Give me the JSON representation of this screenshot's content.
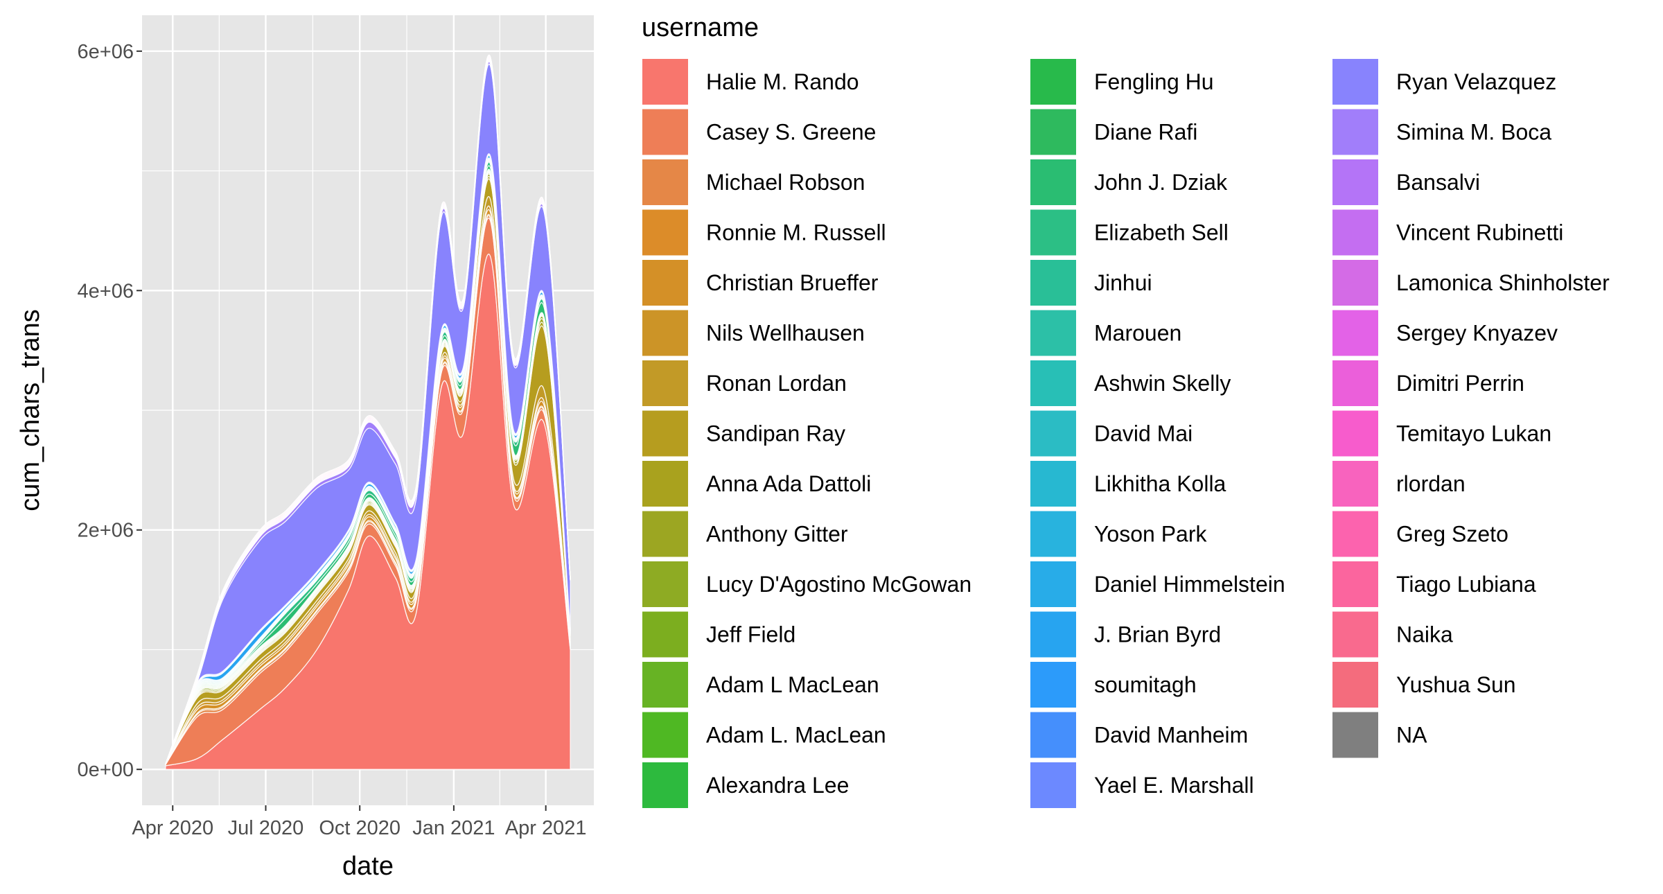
{
  "chart_data": {
    "type": "area",
    "stacked": true,
    "smoothed": true,
    "xlabel": "date",
    "ylabel": "cum_chars_trans",
    "legend_title": "username",
    "legend_position": "right",
    "grid": true,
    "background": "#E6E6E6",
    "xlim": [
      "2020-03-02",
      "2021-05-18"
    ],
    "ylim": [
      -300000,
      6300000
    ],
    "x_ticks": [
      {
        "date": "2020-04-01",
        "label": "Apr 2020"
      },
      {
        "date": "2020-07-01",
        "label": "Jul 2020"
      },
      {
        "date": "2020-10-01",
        "label": "Oct 2020"
      },
      {
        "date": "2021-01-01",
        "label": "Jan 2021"
      },
      {
        "date": "2021-04-01",
        "label": "Apr 2021"
      }
    ],
    "y_ticks": [
      {
        "value": 0,
        "label": "0e+00"
      },
      {
        "value": 2000000,
        "label": "2e+06"
      },
      {
        "value": 4000000,
        "label": "4e+06"
      },
      {
        "value": 6000000,
        "label": "6e+06"
      }
    ],
    "x": [
      "2020-03-25",
      "2020-04-25",
      "2020-05-20",
      "2020-06-25",
      "2020-07-20",
      "2020-08-20",
      "2020-09-20",
      "2020-10-10",
      "2020-11-05",
      "2020-11-25",
      "2020-12-20",
      "2021-01-10",
      "2021-02-05",
      "2021-03-01",
      "2021-03-30",
      "2021-04-25"
    ],
    "series": [
      {
        "name": "Halie M. Rando",
        "color": "#F8766D",
        "values": [
          30000,
          90000,
          250000,
          500000,
          680000,
          1000000,
          1500000,
          1950000,
          1600000,
          1300000,
          3200000,
          2800000,
          4300000,
          2200000,
          2900000,
          1000000
        ]
      },
      {
        "name": "Casey S. Greene",
        "color": "#EE7E57",
        "values": [
          10000,
          350000,
          250000,
          300000,
          300000,
          300000,
          150000,
          100000,
          100000,
          100000,
          120000,
          200000,
          300000,
          80000,
          80000,
          30000
        ]
      },
      {
        "name": "Michael Robson",
        "color": "#E58747",
        "values": [
          0,
          20000,
          20000,
          20000,
          20000,
          20000,
          20000,
          20000,
          20000,
          20000,
          20000,
          20000,
          20000,
          20000,
          20000,
          10000
        ]
      },
      {
        "name": "Ronnie M. Russell",
        "color": "#DC8C29",
        "values": [
          0,
          10000,
          10000,
          10000,
          10000,
          10000,
          10000,
          10000,
          10000,
          10000,
          10000,
          10000,
          10000,
          10000,
          10000,
          5000
        ]
      },
      {
        "name": "Christian Brueffer",
        "color": "#D49027",
        "values": [
          0,
          30000,
          30000,
          30000,
          30000,
          30000,
          30000,
          30000,
          30000,
          30000,
          30000,
          30000,
          40000,
          30000,
          40000,
          10000
        ]
      },
      {
        "name": "Nils Wellhausen",
        "color": "#CC9427",
        "values": [
          0,
          20000,
          20000,
          20000,
          20000,
          20000,
          20000,
          20000,
          20000,
          20000,
          20000,
          20000,
          30000,
          20000,
          30000,
          10000
        ]
      },
      {
        "name": "Ronan Lordan",
        "color": "#C29A27",
        "values": [
          0,
          30000,
          30000,
          30000,
          30000,
          30000,
          30000,
          30000,
          30000,
          30000,
          30000,
          30000,
          80000,
          50000,
          100000,
          20000
        ]
      },
      {
        "name": "Sandipan Ray",
        "color": "#B69D1F",
        "values": [
          0,
          50000,
          50000,
          50000,
          50000,
          50000,
          50000,
          50000,
          50000,
          50000,
          50000,
          50000,
          150000,
          150000,
          500000,
          30000
        ]
      },
      {
        "name": "Anna Ada Dattoli",
        "color": "#A9A21E",
        "values": [
          0,
          10000,
          10000,
          10000,
          10000,
          10000,
          10000,
          10000,
          10000,
          10000,
          10000,
          10000,
          20000,
          20000,
          30000,
          5000
        ]
      },
      {
        "name": "Anthony Gitter",
        "color": "#9CA622",
        "values": [
          0,
          10000,
          10000,
          10000,
          10000,
          10000,
          10000,
          10000,
          10000,
          10000,
          10000,
          10000,
          20000,
          20000,
          30000,
          5000
        ]
      },
      {
        "name": "Lucy D'Agostino McGowan",
        "color": "#8EAB23",
        "values": [
          0,
          10000,
          10000,
          10000,
          10000,
          10000,
          10000,
          10000,
          10000,
          10000,
          10000,
          10000,
          10000,
          10000,
          20000,
          5000
        ]
      },
      {
        "name": "Jeff Field",
        "color": "#7CAE1F",
        "values": [
          0,
          5000,
          5000,
          5000,
          5000,
          5000,
          5000,
          5000,
          5000,
          5000,
          5000,
          5000,
          5000,
          5000,
          5000,
          2000
        ]
      },
      {
        "name": "Adam L MacLean",
        "color": "#67B324",
        "values": [
          0,
          5000,
          5000,
          5000,
          5000,
          5000,
          5000,
          5000,
          5000,
          5000,
          5000,
          5000,
          5000,
          5000,
          5000,
          2000
        ]
      },
      {
        "name": "Adam L. MacLean",
        "color": "#4FB823",
        "values": [
          0,
          5000,
          5000,
          5000,
          5000,
          5000,
          5000,
          5000,
          5000,
          5000,
          5000,
          5000,
          5000,
          5000,
          5000,
          2000
        ]
      },
      {
        "name": "Alexandra Lee",
        "color": "#2DBA3E",
        "values": [
          0,
          5000,
          5000,
          5000,
          5000,
          5000,
          5000,
          5000,
          5000,
          5000,
          5000,
          5000,
          5000,
          5000,
          5000,
          2000
        ]
      },
      {
        "name": "Fengling Hu",
        "color": "#28BA4B",
        "values": [
          0,
          5000,
          5000,
          5000,
          5000,
          5000,
          5000,
          5000,
          5000,
          5000,
          5000,
          5000,
          5000,
          5000,
          5000,
          2000
        ]
      },
      {
        "name": "Diane Rafi",
        "color": "#2EBA5E",
        "values": [
          0,
          5000,
          5000,
          5000,
          5000,
          5000,
          5000,
          5000,
          5000,
          5000,
          5000,
          5000,
          5000,
          5000,
          5000,
          2000
        ]
      },
      {
        "name": "John J. Dziak",
        "color": "#2ABD72",
        "values": [
          0,
          5000,
          5000,
          20000,
          60000,
          30000,
          30000,
          30000,
          30000,
          30000,
          30000,
          30000,
          30000,
          80000,
          80000,
          5000
        ]
      },
      {
        "name": "Elizabeth Sell",
        "color": "#2CBF85",
        "values": [
          0,
          5000,
          5000,
          20000,
          40000,
          30000,
          30000,
          30000,
          30000,
          30000,
          30000,
          30000,
          30000,
          30000,
          30000,
          5000
        ]
      },
      {
        "name": "Jinhui",
        "color": "#29BF97",
        "values": [
          0,
          5000,
          5000,
          5000,
          5000,
          5000,
          5000,
          5000,
          5000,
          5000,
          5000,
          5000,
          5000,
          5000,
          5000,
          2000
        ]
      },
      {
        "name": "Marouen",
        "color": "#2CC0A7",
        "values": [
          0,
          5000,
          5000,
          5000,
          5000,
          5000,
          5000,
          5000,
          5000,
          5000,
          5000,
          5000,
          5000,
          5000,
          5000,
          2000
        ]
      },
      {
        "name": "Ashwin Skelly",
        "color": "#28BFB6",
        "values": [
          0,
          5000,
          5000,
          5000,
          5000,
          5000,
          5000,
          5000,
          5000,
          5000,
          5000,
          5000,
          5000,
          5000,
          5000,
          2000
        ]
      },
      {
        "name": "David Mai",
        "color": "#2BBCC4",
        "values": [
          0,
          5000,
          5000,
          5000,
          5000,
          5000,
          5000,
          5000,
          5000,
          5000,
          5000,
          5000,
          5000,
          5000,
          5000,
          2000
        ]
      },
      {
        "name": "Likhitha Kolla",
        "color": "#27B8D1",
        "values": [
          0,
          5000,
          5000,
          5000,
          5000,
          5000,
          5000,
          5000,
          5000,
          5000,
          5000,
          5000,
          5000,
          5000,
          5000,
          2000
        ]
      },
      {
        "name": "Yoson Park",
        "color": "#28B3DE",
        "values": [
          0,
          5000,
          5000,
          5000,
          5000,
          5000,
          5000,
          5000,
          5000,
          5000,
          5000,
          5000,
          5000,
          5000,
          5000,
          2000
        ]
      },
      {
        "name": "Daniel Himmelstein",
        "color": "#28ACE8",
        "values": [
          0,
          5000,
          5000,
          5000,
          5000,
          5000,
          5000,
          5000,
          5000,
          5000,
          5000,
          5000,
          5000,
          5000,
          5000,
          2000
        ]
      },
      {
        "name": "J. Brian Byrd",
        "color": "#27A4F0",
        "values": [
          0,
          5000,
          40000,
          50000,
          20000,
          20000,
          20000,
          20000,
          20000,
          20000,
          20000,
          20000,
          20000,
          20000,
          20000,
          5000
        ]
      },
      {
        "name": "soumitagh",
        "color": "#2C9BFA",
        "values": [
          0,
          5000,
          5000,
          5000,
          5000,
          5000,
          5000,
          5000,
          5000,
          5000,
          5000,
          5000,
          5000,
          5000,
          5000,
          2000
        ]
      },
      {
        "name": "David Manheim",
        "color": "#458FFC",
        "values": [
          0,
          5000,
          5000,
          5000,
          5000,
          5000,
          5000,
          5000,
          5000,
          5000,
          5000,
          5000,
          5000,
          5000,
          5000,
          2000
        ]
      },
      {
        "name": "Yael E. Marshall",
        "color": "#6C89FF",
        "values": [
          0,
          5000,
          5000,
          5000,
          5000,
          5000,
          5000,
          5000,
          5000,
          5000,
          5000,
          5000,
          5000,
          5000,
          5000,
          2000
        ]
      },
      {
        "name": "Ryan Velazquez",
        "color": "#8883FD",
        "values": [
          5000,
          5000,
          600000,
          750000,
          700000,
          700000,
          500000,
          450000,
          500000,
          500000,
          950000,
          500000,
          750000,
          550000,
          700000,
          400000
        ]
      },
      {
        "name": "Simina M. Boca",
        "color": "#A17EFA",
        "values": [
          0,
          5000,
          20000,
          30000,
          30000,
          30000,
          30000,
          50000,
          50000,
          50000,
          30000,
          20000,
          20000,
          20000,
          20000,
          5000
        ]
      },
      {
        "name": "Bansalvi",
        "color": "#B474F7",
        "values": [
          0,
          5000,
          5000,
          5000,
          5000,
          5000,
          5000,
          5000,
          5000,
          5000,
          5000,
          5000,
          5000,
          5000,
          5000,
          2000
        ]
      },
      {
        "name": "Vincent Rubinetti",
        "color": "#C46EF1",
        "values": [
          0,
          5000,
          5000,
          5000,
          5000,
          5000,
          5000,
          5000,
          5000,
          5000,
          5000,
          5000,
          5000,
          5000,
          5000,
          2000
        ]
      },
      {
        "name": "Lamonica Shinholster",
        "color": "#D46BE6",
        "values": [
          0,
          5000,
          5000,
          5000,
          5000,
          5000,
          5000,
          5000,
          5000,
          5000,
          5000,
          5000,
          5000,
          5000,
          5000,
          2000
        ]
      },
      {
        "name": "Sergey Knyazev",
        "color": "#E362E7",
        "values": [
          0,
          5000,
          5000,
          5000,
          5000,
          5000,
          5000,
          5000,
          5000,
          5000,
          5000,
          5000,
          5000,
          5000,
          5000,
          2000
        ]
      },
      {
        "name": "Dimitri Perrin",
        "color": "#EB5FDA",
        "values": [
          0,
          5000,
          5000,
          5000,
          5000,
          5000,
          5000,
          5000,
          5000,
          5000,
          5000,
          5000,
          5000,
          5000,
          5000,
          2000
        ]
      },
      {
        "name": "Temitayo Lukan",
        "color": "#F75CCC",
        "values": [
          0,
          5000,
          5000,
          5000,
          5000,
          5000,
          5000,
          5000,
          5000,
          5000,
          5000,
          5000,
          5000,
          5000,
          5000,
          2000
        ]
      },
      {
        "name": "rlordan",
        "color": "#F863BE",
        "values": [
          0,
          5000,
          5000,
          5000,
          5000,
          5000,
          5000,
          5000,
          5000,
          5000,
          5000,
          5000,
          5000,
          5000,
          5000,
          2000
        ]
      },
      {
        "name": "Greg Szeto",
        "color": "#FC63AE",
        "values": [
          0,
          5000,
          5000,
          5000,
          5000,
          5000,
          5000,
          5000,
          5000,
          5000,
          5000,
          5000,
          5000,
          5000,
          5000,
          2000
        ]
      },
      {
        "name": "Tiago Lubiana",
        "color": "#FB659E",
        "values": [
          0,
          5000,
          5000,
          5000,
          5000,
          5000,
          5000,
          5000,
          5000,
          5000,
          5000,
          5000,
          5000,
          5000,
          5000,
          2000
        ]
      },
      {
        "name": "Naika",
        "color": "#F96A8E",
        "values": [
          0,
          5000,
          5000,
          5000,
          5000,
          5000,
          5000,
          5000,
          5000,
          5000,
          5000,
          5000,
          5000,
          5000,
          5000,
          2000
        ]
      },
      {
        "name": "Yushua Sun",
        "color": "#F46C7D",
        "values": [
          0,
          5000,
          5000,
          5000,
          5000,
          5000,
          5000,
          5000,
          5000,
          5000,
          5000,
          5000,
          5000,
          5000,
          5000,
          2000
        ]
      },
      {
        "name": "NA",
        "color": "#7F7F7F",
        "values": [
          0,
          0,
          0,
          0,
          0,
          0,
          0,
          0,
          0,
          0,
          0,
          0,
          0,
          0,
          0,
          0
        ]
      }
    ]
  }
}
